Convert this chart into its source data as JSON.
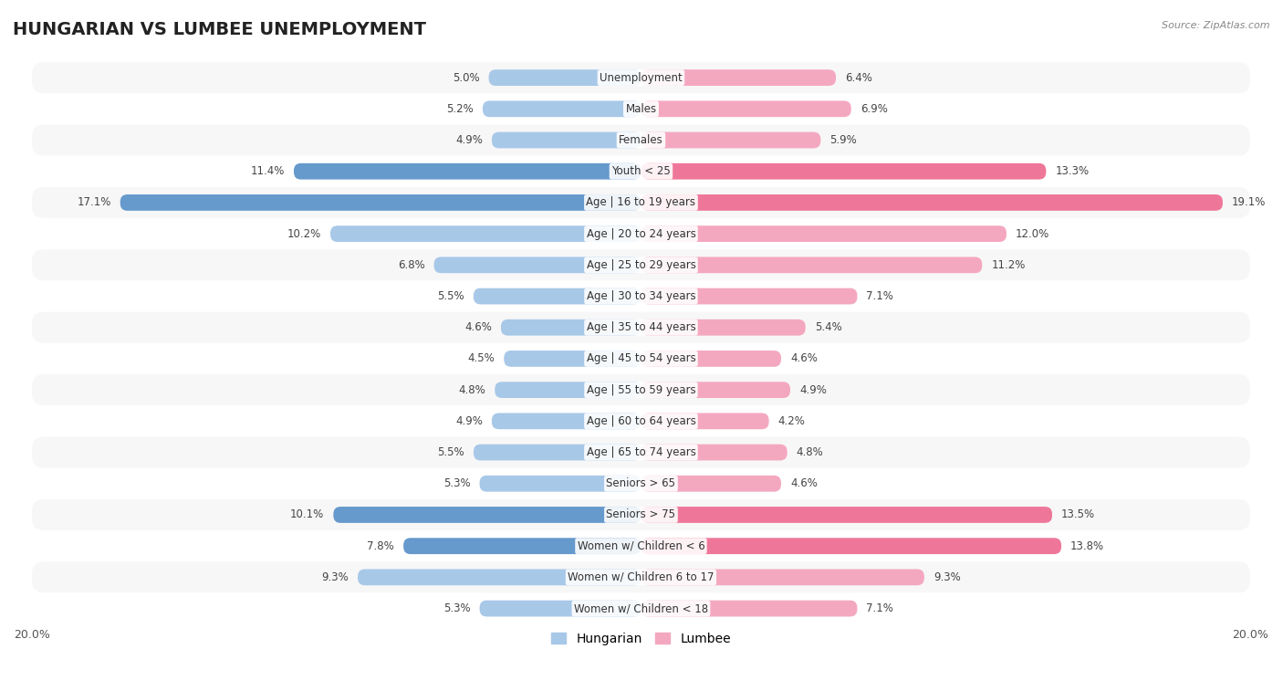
{
  "title": "HUNGARIAN VS LUMBEE UNEMPLOYMENT",
  "source": "Source: ZipAtlas.com",
  "categories": [
    "Unemployment",
    "Males",
    "Females",
    "Youth < 25",
    "Age | 16 to 19 years",
    "Age | 20 to 24 years",
    "Age | 25 to 29 years",
    "Age | 30 to 34 years",
    "Age | 35 to 44 years",
    "Age | 45 to 54 years",
    "Age | 55 to 59 years",
    "Age | 60 to 64 years",
    "Age | 65 to 74 years",
    "Seniors > 65",
    "Seniors > 75",
    "Women w/ Children < 6",
    "Women w/ Children 6 to 17",
    "Women w/ Children < 18"
  ],
  "hungarian": [
    5.0,
    5.2,
    4.9,
    11.4,
    17.1,
    10.2,
    6.8,
    5.5,
    4.6,
    4.5,
    4.8,
    4.9,
    5.5,
    5.3,
    10.1,
    7.8,
    9.3,
    5.3
  ],
  "lumbee": [
    6.4,
    6.9,
    5.9,
    13.3,
    19.1,
    12.0,
    11.2,
    7.1,
    5.4,
    4.6,
    4.9,
    4.2,
    4.8,
    4.6,
    13.5,
    13.8,
    9.3,
    7.1
  ],
  "hungarian_color": "#a8c8e8",
  "lumbee_color": "#f4a8c0",
  "hungarian_highlight_color": "#6699cc",
  "lumbee_highlight_color": "#ee7799",
  "highlight_rows": [
    3,
    4,
    14,
    15
  ],
  "axis_max": 20.0,
  "label_fontsize": 8.5,
  "cat_fontsize": 8.5,
  "title_fontsize": 14,
  "legend_labels": [
    "Hungarian",
    "Lumbee"
  ],
  "row_colors": [
    "#f7f7f7",
    "#ffffff"
  ]
}
